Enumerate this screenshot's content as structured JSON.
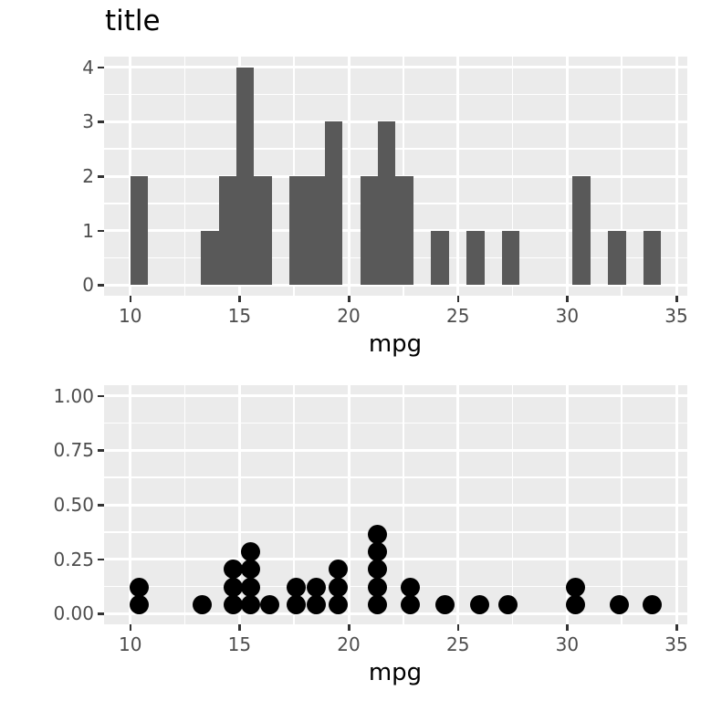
{
  "title": "title",
  "chart_data": [
    {
      "type": "bar",
      "subtype": "histogram",
      "title": "title",
      "xlabel": "mpg",
      "ylabel": "",
      "bins": 30,
      "binwidth": 0.8103,
      "bin_centers": [
        10.4,
        11.21,
        12.02,
        12.83,
        13.64,
        14.45,
        15.26,
        16.07,
        16.88,
        17.69,
        18.5,
        19.31,
        20.12,
        20.93,
        21.74,
        22.55,
        23.36,
        24.18,
        24.99,
        25.8,
        26.61,
        27.42,
        28.23,
        29.04,
        29.85,
        30.66,
        31.47,
        32.28,
        33.09,
        33.9
      ],
      "values": [
        2,
        0,
        0,
        0,
        1,
        2,
        4,
        2,
        0,
        2,
        2,
        3,
        0,
        2,
        3,
        2,
        0,
        1,
        0,
        1,
        0,
        1,
        0,
        0,
        0,
        2,
        0,
        1,
        0,
        1
      ],
      "xlim": [
        8.8,
        35.5
      ],
      "ylim": [
        -0.2,
        4.2
      ],
      "x_ticks": [
        10,
        15,
        20,
        25,
        30,
        35
      ],
      "y_ticks": [
        0,
        1,
        2,
        3,
        4
      ],
      "x_tick_labels": [
        "10",
        "15",
        "20",
        "25",
        "30",
        "35"
      ],
      "y_tick_labels": [
        "0",
        "1",
        "2",
        "3",
        "4"
      ],
      "grid": true,
      "bar_color": "#595959",
      "panel_color": "#EBEBEB"
    },
    {
      "type": "scatter",
      "subtype": "dotplot",
      "title": "",
      "xlabel": "mpg",
      "ylabel": "",
      "stacks": [
        {
          "x": 10.4,
          "count": 2
        },
        {
          "x": 13.3,
          "count": 1
        },
        {
          "x": 14.7,
          "count": 3
        },
        {
          "x": 15.5,
          "count": 4
        },
        {
          "x": 16.4,
          "count": 1
        },
        {
          "x": 17.6,
          "count": 2
        },
        {
          "x": 18.5,
          "count": 2
        },
        {
          "x": 19.5,
          "count": 3
        },
        {
          "x": 21.3,
          "count": 5
        },
        {
          "x": 22.8,
          "count": 2
        },
        {
          "x": 24.4,
          "count": 1
        },
        {
          "x": 26.0,
          "count": 1
        },
        {
          "x": 27.3,
          "count": 1
        },
        {
          "x": 30.4,
          "count": 2
        },
        {
          "x": 32.4,
          "count": 1
        },
        {
          "x": 33.9,
          "count": 1
        }
      ],
      "dot_y_base": 0.042,
      "dot_y_step": 0.08,
      "xlim": [
        8.8,
        35.5
      ],
      "ylim": [
        -0.05,
        1.05
      ],
      "x_ticks": [
        10,
        15,
        20,
        25,
        30,
        35
      ],
      "y_ticks": [
        0,
        0.25,
        0.5,
        0.75,
        1.0
      ],
      "x_tick_labels": [
        "10",
        "15",
        "20",
        "25",
        "30",
        "35"
      ],
      "y_tick_labels": [
        "0.00",
        "0.25",
        "0.50",
        "0.75",
        "1.00"
      ],
      "grid": true,
      "dot_color": "#000000",
      "panel_color": "#EBEBEB"
    }
  ]
}
